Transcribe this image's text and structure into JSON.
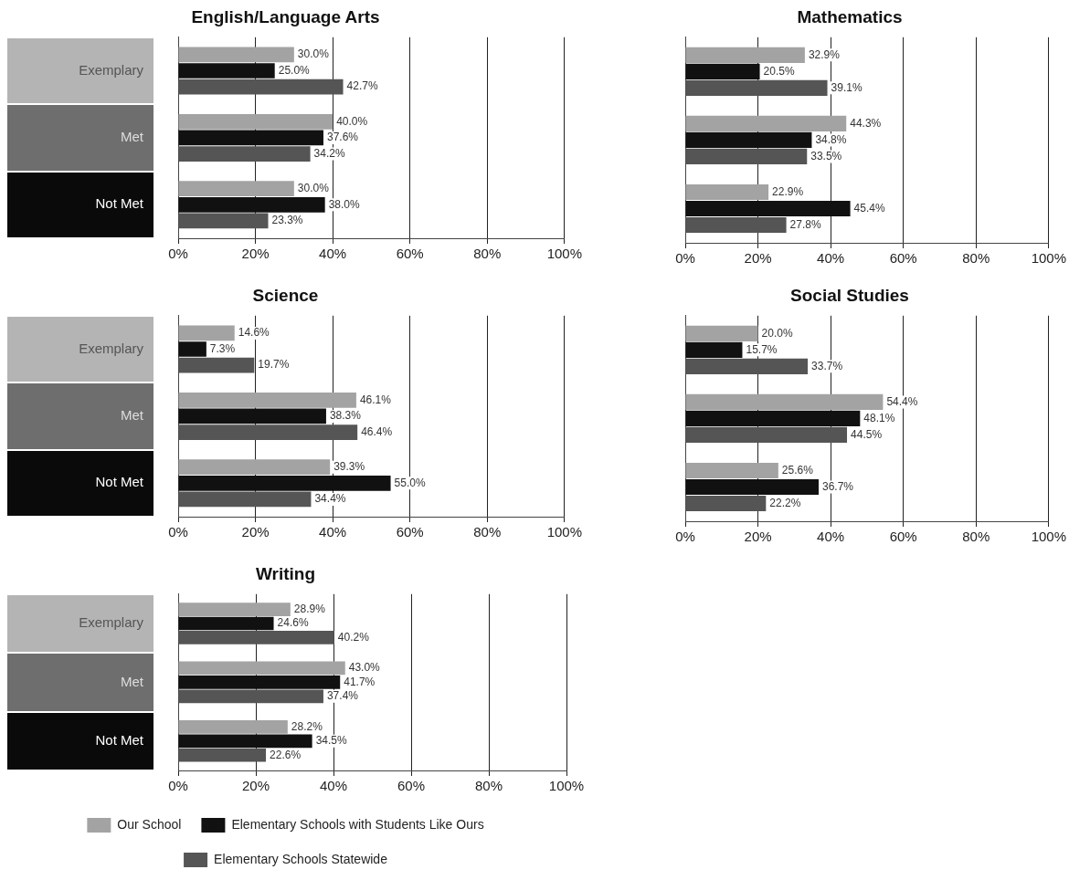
{
  "chart_data": [
    {
      "type": "bar",
      "orientation": "horizontal",
      "title": "English/Language Arts",
      "categories": [
        "Exemplary",
        "Met",
        "Not Met"
      ],
      "xlim": [
        0,
        100
      ],
      "xticks": [
        {
          "value": 0,
          "label": "0%"
        },
        {
          "value": 20,
          "label": "20%"
        },
        {
          "value": 40,
          "label": "40%"
        },
        {
          "value": 60,
          "label": "60%"
        },
        {
          "value": 80,
          "label": "80%"
        },
        {
          "value": 100,
          "label": "100%"
        }
      ],
      "grid": "x",
      "legend": false,
      "series": [
        {
          "color": "#a3a3a3",
          "values": [
            30.0,
            40.0,
            30.0
          ],
          "value_labels": [
            "30.0%",
            "40.0%",
            "30.0%"
          ]
        },
        {
          "color": "#111111",
          "values": [
            25.0,
            37.6,
            38.0
          ],
          "value_labels": [
            "25.0%",
            "37.6%",
            "38.0%"
          ]
        },
        {
          "color": "#555555",
          "values": [
            42.7,
            34.2,
            23.3
          ],
          "value_labels": [
            "42.7%",
            "34.2%",
            "23.3%"
          ]
        }
      ]
    },
    {
      "type": "bar",
      "orientation": "horizontal",
      "title": "Mathematics",
      "categories": [
        null,
        null,
        null
      ],
      "tick_labels": "x",
      "xlim": [
        0,
        100
      ],
      "xticks": [
        {
          "value": 0,
          "label": "0%"
        },
        {
          "value": 20,
          "label": "20%"
        },
        {
          "value": 40,
          "label": "40%"
        },
        {
          "value": 60,
          "label": "60%"
        },
        {
          "value": 80,
          "label": "80%"
        },
        {
          "value": 100,
          "label": "100%"
        }
      ],
      "grid": "x",
      "legend": false,
      "series": [
        {
          "color": "#a3a3a3",
          "values": [
            32.9,
            44.3,
            22.9
          ],
          "value_labels": [
            "32.9%",
            "44.3%",
            "22.9%"
          ]
        },
        {
          "color": "#111111",
          "values": [
            20.5,
            34.8,
            45.4
          ],
          "value_labels": [
            "20.5%",
            "34.8%",
            "45.4%"
          ]
        },
        {
          "color": "#555555",
          "values": [
            39.1,
            33.5,
            27.8
          ],
          "value_labels": [
            "39.1%",
            "33.5%",
            "27.8%"
          ]
        }
      ]
    },
    {
      "type": "bar",
      "orientation": "horizontal",
      "title": "Science",
      "categories": [
        "Exemplary",
        "Met",
        "Not Met"
      ],
      "xlim": [
        0,
        100
      ],
      "xticks": [
        {
          "value": 0,
          "label": "0%"
        },
        {
          "value": 20,
          "label": "20%"
        },
        {
          "value": 40,
          "label": "40%"
        },
        {
          "value": 60,
          "label": "60%"
        },
        {
          "value": 80,
          "label": "80%"
        },
        {
          "value": 100,
          "label": "100%"
        }
      ],
      "grid": "x",
      "legend": false,
      "series": [
        {
          "color": "#a3a3a3",
          "values": [
            14.6,
            46.1,
            39.3
          ],
          "value_labels": [
            "14.6%",
            "46.1%",
            "39.3%"
          ]
        },
        {
          "color": "#111111",
          "values": [
            7.3,
            38.3,
            55.0
          ],
          "value_labels": [
            "7.3%",
            "38.3%",
            "55.0%"
          ]
        },
        {
          "color": "#555555",
          "values": [
            19.7,
            46.4,
            34.4
          ],
          "value_labels": [
            "19.7%",
            "46.4%",
            "34.4%"
          ]
        }
      ]
    },
    {
      "type": "bar",
      "orientation": "horizontal",
      "title": "Social Studies",
      "categories": [
        null,
        null,
        null
      ],
      "tick_labels": "x",
      "xlim": [
        0,
        100
      ],
      "xticks": [
        {
          "value": 0,
          "label": "0%"
        },
        {
          "value": 20,
          "label": "20%"
        },
        {
          "value": 40,
          "label": "40%"
        },
        {
          "value": 60,
          "label": "60%"
        },
        {
          "value": 80,
          "label": "80%"
        },
        {
          "value": 100,
          "label": "100%"
        }
      ],
      "grid": "x",
      "legend": false,
      "series": [
        {
          "color": "#a3a3a3",
          "values": [
            20.0,
            54.4,
            25.6
          ],
          "value_labels": [
            "20.0%",
            "54.4%",
            "25.6%"
          ]
        },
        {
          "color": "#111111",
          "values": [
            15.7,
            48.1,
            36.7
          ],
          "value_labels": [
            "15.7%",
            "48.1%",
            "36.7%"
          ]
        },
        {
          "color": "#555555",
          "values": [
            33.7,
            44.5,
            22.2
          ],
          "value_labels": [
            "33.7%",
            "44.5%",
            "22.2%"
          ]
        }
      ]
    },
    {
      "type": "bar",
      "orientation": "horizontal",
      "title": "Writing",
      "categories": [
        "Exemplary",
        "Met",
        "Not Met"
      ],
      "xlim": [
        0,
        100
      ],
      "xticks": [
        {
          "value": 0,
          "label": "0%"
        },
        {
          "value": 20,
          "label": "20%"
        },
        {
          "value": 40,
          "label": "40%"
        },
        {
          "value": 60,
          "label": "60%"
        },
        {
          "value": 80,
          "label": "80%"
        },
        {
          "value": 100,
          "label": "100%"
        }
      ],
      "grid": "x",
      "legend": "bottom",
      "series": [
        {
          "name": "Our School",
          "color": "#a3a3a3",
          "values": [
            28.9,
            43.0,
            28.2
          ],
          "value_labels": [
            "28.9%",
            "43.0%",
            "28.2%"
          ]
        },
        {
          "name": "Elementary Schools with Students Like Ours",
          "color": "#111111",
          "values": [
            24.6,
            41.7,
            34.5
          ],
          "value_labels": [
            "24.6%",
            "41.7%",
            "34.5%"
          ]
        },
        {
          "name": "Elementary Schools Statewide",
          "color": "#555555",
          "values": [
            40.2,
            37.4,
            22.6
          ],
          "value_labels": [
            "40.2%",
            "37.4%",
            "22.6%"
          ]
        }
      ]
    }
  ]
}
